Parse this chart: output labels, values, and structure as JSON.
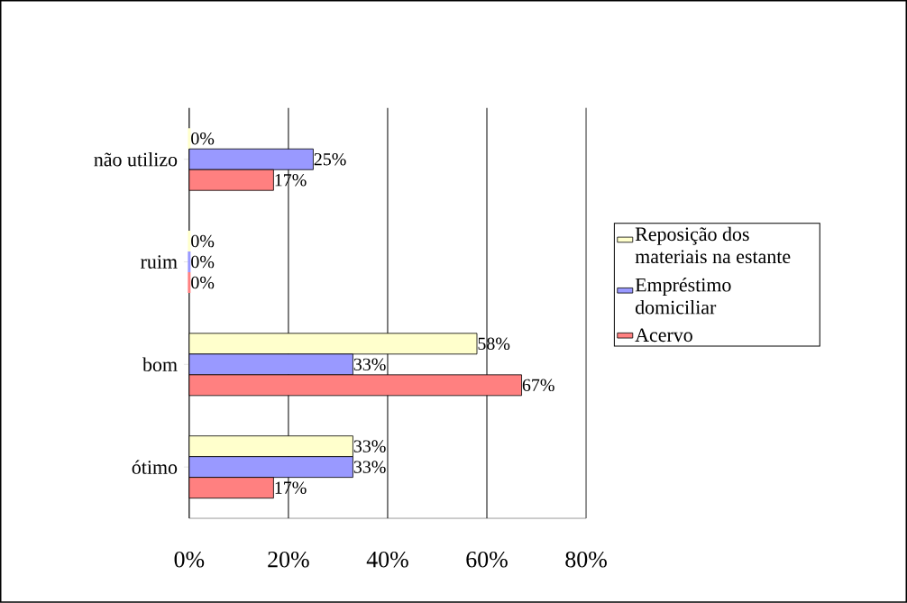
{
  "chart_data": {
    "type": "bar",
    "orientation": "horizontal",
    "categories": [
      "não utilizo",
      "ruim",
      "bom",
      "ótimo"
    ],
    "series": [
      {
        "name": "Reposição dos materiais na estante",
        "color": "#ffffcc",
        "values": [
          0,
          0,
          58,
          33
        ],
        "value_labels": [
          "0%",
          "0%",
          "58%",
          "33%"
        ]
      },
      {
        "name": "Empréstimo domiciliar",
        "color": "#9999ff",
        "values": [
          25,
          0,
          33,
          33
        ],
        "value_labels": [
          "25%",
          "0%",
          "33%",
          "33%"
        ]
      },
      {
        "name": "Acervo",
        "color": "#ff8080",
        "values": [
          17,
          0,
          67,
          17
        ],
        "value_labels": [
          "17%",
          "0%",
          "67%",
          "17%"
        ]
      }
    ],
    "xlim": [
      0,
      80
    ],
    "xticks": [
      {
        "value": 0,
        "label": "0%"
      },
      {
        "value": 20,
        "label": "20%"
      },
      {
        "value": 40,
        "label": "40%"
      },
      {
        "value": 60,
        "label": "60%"
      },
      {
        "value": 80,
        "label": "80%"
      }
    ],
    "grid": "x",
    "legend": "right"
  }
}
